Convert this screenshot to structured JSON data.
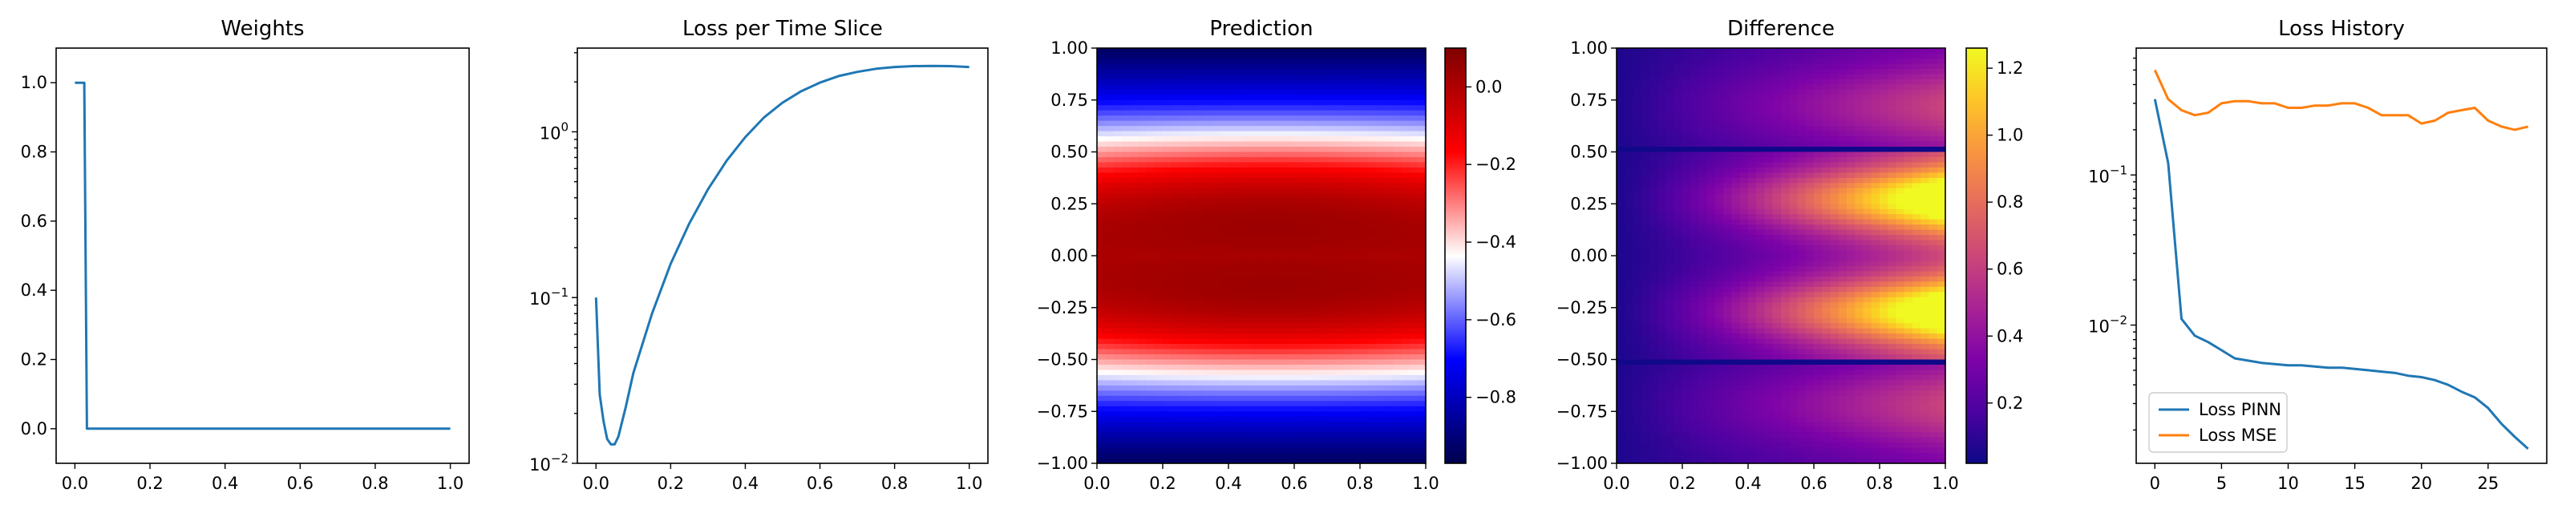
{
  "chart_data": [
    {
      "type": "line",
      "title": "Weights",
      "xlim": [
        -0.05,
        1.05
      ],
      "ylim": [
        -0.1,
        1.1
      ],
      "xticks": [
        "0.0",
        "0.2",
        "0.4",
        "0.6",
        "0.8",
        "1.0"
      ],
      "yticks": [
        "0.0",
        "0.2",
        "0.4",
        "0.6",
        "0.8",
        "1.0"
      ],
      "grid": false,
      "series": [
        {
          "color": "#1f77b4",
          "x": [
            0.0,
            0.025,
            0.032,
            0.04,
            1.0
          ],
          "y": [
            1.0,
            1.0,
            0.0,
            0.0,
            0.0
          ]
        }
      ]
    },
    {
      "type": "line",
      "title": "Loss per Time Slice",
      "yscale": "log",
      "xlim": [
        -0.05,
        1.05
      ],
      "ylim": [
        0.01,
        3.2
      ],
      "xticks": [
        "0.0",
        "0.2",
        "0.4",
        "0.6",
        "0.8",
        "1.0"
      ],
      "yticks": [
        {
          "base": "10",
          "exp": "−2",
          "value": 0.01
        },
        {
          "base": "10",
          "exp": "−1",
          "value": 0.1
        },
        {
          "base": "10",
          "exp": "0",
          "value": 1
        }
      ],
      "grid": false,
      "series": [
        {
          "color": "#1f77b4",
          "x": [
            0.0,
            0.01,
            0.02,
            0.03,
            0.04,
            0.05,
            0.06,
            0.08,
            0.1,
            0.15,
            0.2,
            0.25,
            0.3,
            0.35,
            0.4,
            0.45,
            0.5,
            0.55,
            0.6,
            0.65,
            0.7,
            0.75,
            0.8,
            0.85,
            0.9,
            0.95,
            1.0
          ],
          "y": [
            0.1,
            0.026,
            0.018,
            0.014,
            0.013,
            0.013,
            0.0145,
            0.022,
            0.035,
            0.08,
            0.16,
            0.28,
            0.45,
            0.67,
            0.93,
            1.22,
            1.5,
            1.76,
            1.98,
            2.17,
            2.3,
            2.4,
            2.46,
            2.49,
            2.5,
            2.49,
            2.46
          ]
        }
      ]
    },
    {
      "type": "heatmap",
      "title": "Prediction",
      "xlim": [
        0,
        1
      ],
      "ylim": [
        -1,
        1
      ],
      "xticks": [
        "0.0",
        "0.2",
        "0.4",
        "0.6",
        "0.8",
        "1.0"
      ],
      "yticks": [
        "1.00",
        "0.75",
        "0.50",
        "0.25",
        "0.00",
        "−0.25",
        "−0.50",
        "−0.75",
        "−1.00"
      ],
      "colormap": "seismic",
      "colorbar": {
        "min": -0.97,
        "max": 0.1,
        "ticks": [
          "0.0",
          "−0.2",
          "−0.4",
          "−0.6",
          "−0.8"
        ],
        "tick_values": [
          0.0,
          -0.2,
          -0.4,
          -0.6,
          -0.8
        ]
      },
      "grid": false
    },
    {
      "type": "heatmap",
      "title": "Difference",
      "xlim": [
        0,
        1
      ],
      "ylim": [
        -1,
        1
      ],
      "xticks": [
        "0.0",
        "0.2",
        "0.4",
        "0.6",
        "0.8",
        "1.0"
      ],
      "yticks": [
        "1.00",
        "0.75",
        "0.50",
        "0.25",
        "0.00",
        "−0.25",
        "−0.50",
        "−0.75",
        "−1.00"
      ],
      "colormap": "plasma",
      "colorbar": {
        "min": 0.02,
        "max": 1.26,
        "ticks": [
          "1.2",
          "1.0",
          "0.8",
          "0.6",
          "0.4",
          "0.2"
        ],
        "tick_values": [
          1.2,
          1.0,
          0.8,
          0.6,
          0.4,
          0.2
        ]
      },
      "grid": false
    },
    {
      "type": "line",
      "title": "Loss History",
      "yscale": "log",
      "xlim": [
        -1.4,
        29.4
      ],
      "ylim": [
        0.0012,
        0.7
      ],
      "xticks": [
        "0",
        "5",
        "10",
        "15",
        "20",
        "25"
      ],
      "yticks": [
        {
          "base": "10",
          "exp": "−2",
          "value": 0.01
        },
        {
          "base": "10",
          "exp": "−1",
          "value": 0.1
        }
      ],
      "legend": "lower-left",
      "grid": false,
      "series": [
        {
          "name": "Loss PINN",
          "color": "#1f77b4",
          "x": [
            0,
            1,
            2,
            3,
            4,
            5,
            6,
            7,
            8,
            9,
            10,
            11,
            12,
            13,
            14,
            15,
            16,
            17,
            18,
            19,
            20,
            21,
            22,
            23,
            24,
            25,
            26,
            27,
            28
          ],
          "y": [
            0.32,
            0.12,
            0.011,
            0.0085,
            0.0077,
            0.0068,
            0.006,
            0.0058,
            0.0056,
            0.0055,
            0.0054,
            0.0054,
            0.0053,
            0.0052,
            0.0052,
            0.0051,
            0.005,
            0.0049,
            0.0048,
            0.0046,
            0.0045,
            0.0043,
            0.004,
            0.0036,
            0.0033,
            0.0028,
            0.0022,
            0.0018,
            0.0015
          ]
        },
        {
          "name": "Loss MSE",
          "color": "#ff7f0e",
          "x": [
            0,
            1,
            2,
            3,
            4,
            5,
            6,
            7,
            8,
            9,
            10,
            11,
            12,
            13,
            14,
            15,
            16,
            17,
            18,
            19,
            20,
            21,
            22,
            23,
            24,
            25,
            26,
            27,
            28
          ],
          "y": [
            0.5,
            0.32,
            0.27,
            0.25,
            0.26,
            0.3,
            0.31,
            0.31,
            0.3,
            0.3,
            0.28,
            0.28,
            0.29,
            0.29,
            0.3,
            0.3,
            0.28,
            0.25,
            0.25,
            0.25,
            0.22,
            0.23,
            0.26,
            0.27,
            0.28,
            0.23,
            0.21,
            0.2,
            0.21
          ]
        }
      ]
    }
  ]
}
